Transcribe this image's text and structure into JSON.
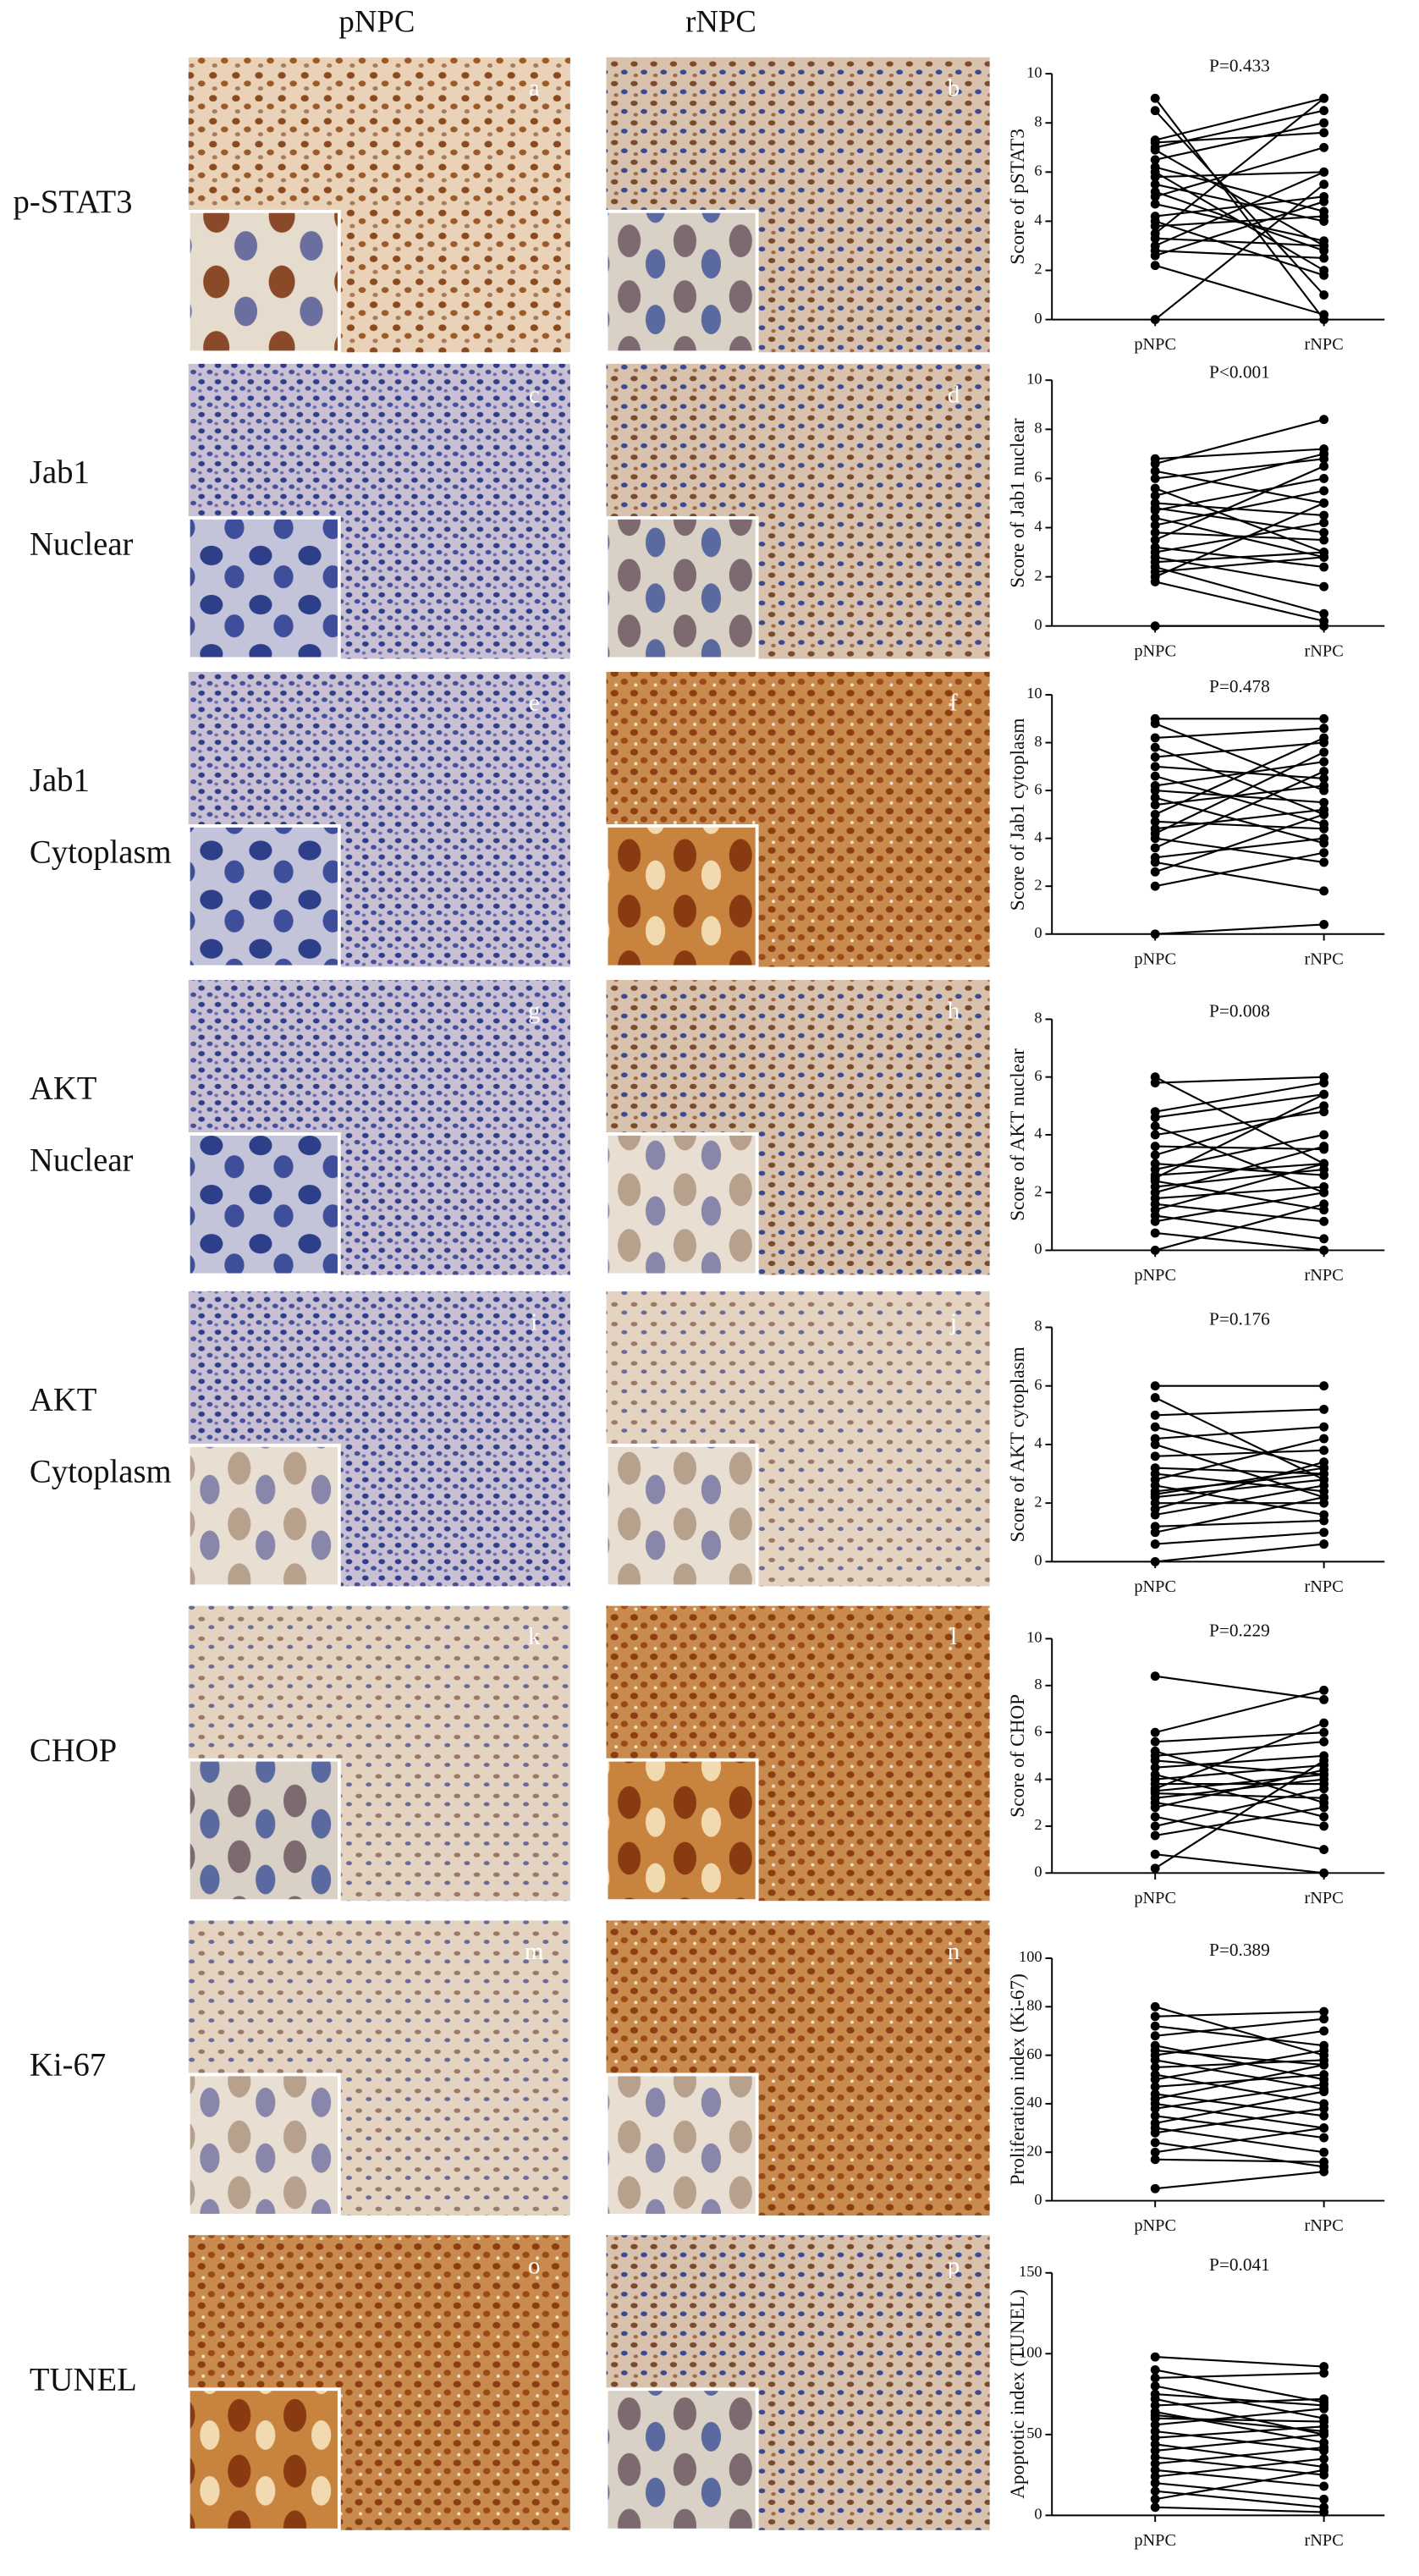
{
  "figure": {
    "column_headers": [
      "pNPC",
      "rNPC"
    ],
    "rows": [
      {
        "label_lines": [
          "p-STAT3"
        ],
        "panels": [
          "a",
          "b"
        ]
      },
      {
        "label_lines": [
          "Jab1",
          "Nuclear"
        ],
        "panels": [
          "c",
          "d"
        ]
      },
      {
        "label_lines": [
          "Jab1",
          "Cytoplasm"
        ],
        "panels": [
          "e",
          "f"
        ]
      },
      {
        "label_lines": [
          "AKT",
          "Nuclear"
        ],
        "panels": [
          "g",
          "h"
        ]
      },
      {
        "label_lines": [
          "AKT",
          "Cytoplasm"
        ],
        "panels": [
          "i",
          "j"
        ]
      },
      {
        "label_lines": [
          "CHOP"
        ],
        "panels": [
          "k",
          "l"
        ]
      },
      {
        "label_lines": [
          "Ki-67"
        ],
        "panels": [
          "m",
          "n"
        ]
      },
      {
        "label_lines": [
          "TUNEL"
        ],
        "panels": [
          "o",
          "p"
        ]
      }
    ]
  },
  "chart_data": [
    {
      "type": "paired",
      "annotation": "P=0.433",
      "y_label": "Score of pSTAT3",
      "categories": [
        "pNPC",
        "rNPC"
      ],
      "color": "#000000",
      "ylim": [
        0,
        10
      ],
      "yticks": [
        0,
        2,
        4,
        6,
        8,
        10
      ],
      "pairs": [
        [
          9,
          0
        ],
        [
          8.5,
          1
        ],
        [
          7.3,
          9
        ],
        [
          7,
          8.5
        ],
        [
          6.9,
          3
        ],
        [
          6.5,
          8
        ],
        [
          6.2,
          4.4
        ],
        [
          6,
          2
        ],
        [
          5.8,
          6
        ],
        [
          5.5,
          4
        ],
        [
          5,
          7
        ],
        [
          4.7,
          3.2
        ],
        [
          4.2,
          5
        ],
        [
          4,
          1.8
        ],
        [
          3.8,
          4.2
        ],
        [
          3.3,
          3
        ],
        [
          3,
          6
        ],
        [
          2.8,
          2.5
        ],
        [
          2.6,
          4.8
        ],
        [
          2.2,
          0.2
        ],
        [
          0,
          5.5
        ],
        [
          7.2,
          7.6
        ],
        [
          3.5,
          9
        ],
        [
          5.2,
          2.8
        ]
      ]
    },
    {
      "type": "paired",
      "annotation": "P<0.001",
      "y_label": "Score of Jab1 nuclear",
      "categories": [
        "pNPC",
        "rNPC"
      ],
      "color": "#000000",
      "ylim": [
        0,
        10
      ],
      "yticks": [
        0,
        2,
        4,
        6,
        8,
        10
      ],
      "pairs": [
        [
          6.8,
          7.2
        ],
        [
          6.6,
          8.4
        ],
        [
          6.3,
          5
        ],
        [
          6,
          6.8
        ],
        [
          5.6,
          3
        ],
        [
          5.3,
          7
        ],
        [
          5,
          4.5
        ],
        [
          4.7,
          6
        ],
        [
          4.4,
          2.8
        ],
        [
          4.1,
          5.5
        ],
        [
          3.8,
          3.5
        ],
        [
          3.5,
          6.5
        ],
        [
          3.2,
          2.4
        ],
        [
          3,
          4.2
        ],
        [
          2.8,
          1.6
        ],
        [
          2.6,
          3
        ],
        [
          2.4,
          0.5
        ],
        [
          2.2,
          2.8
        ],
        [
          2,
          5
        ],
        [
          0,
          0
        ],
        [
          1.8,
          0.2
        ],
        [
          4.8,
          3.8
        ]
      ]
    },
    {
      "type": "paired",
      "annotation": "P=0.478",
      "y_label": "Score of Jab1 cytoplasm",
      "categories": [
        "pNPC",
        "rNPC"
      ],
      "color": "#000000",
      "ylim": [
        0,
        10
      ],
      "yticks": [
        0,
        2,
        4,
        6,
        8,
        10
      ],
      "pairs": [
        [
          9,
          9
        ],
        [
          8.8,
          6
        ],
        [
          8.2,
          8.6
        ],
        [
          7.8,
          5
        ],
        [
          7.4,
          8
        ],
        [
          7,
          6.5
        ],
        [
          6.6,
          4.6
        ],
        [
          6.2,
          7.2
        ],
        [
          6,
          5.5
        ],
        [
          5.7,
          3.8
        ],
        [
          5.4,
          6.2
        ],
        [
          5,
          8.2
        ],
        [
          4.7,
          4.4
        ],
        [
          4.4,
          5.2
        ],
        [
          4,
          3
        ],
        [
          3.6,
          6.8
        ],
        [
          3.2,
          4
        ],
        [
          3,
          1.8
        ],
        [
          2.6,
          5
        ],
        [
          2,
          3.4
        ],
        [
          0,
          0.4
        ],
        [
          4.2,
          7.6
        ]
      ]
    },
    {
      "type": "paired",
      "annotation": "P=0.008",
      "y_label": "Score of AKT nuclear",
      "categories": [
        "pNPC",
        "rNPC"
      ],
      "color": "#000000",
      "ylim": [
        0,
        8
      ],
      "yticks": [
        0,
        2,
        4,
        6,
        8
      ],
      "pairs": [
        [
          6,
          3
        ],
        [
          5.8,
          6
        ],
        [
          4.8,
          5.8
        ],
        [
          4.6,
          5.4
        ],
        [
          4.3,
          2
        ],
        [
          4,
          4.8
        ],
        [
          3.6,
          3.5
        ],
        [
          3.3,
          5
        ],
        [
          3,
          2.6
        ],
        [
          2.8,
          4
        ],
        [
          2.6,
          3
        ],
        [
          2.4,
          1.4
        ],
        [
          2.2,
          2.8
        ],
        [
          2,
          3.6
        ],
        [
          1.8,
          2.2
        ],
        [
          1.6,
          1
        ],
        [
          1.4,
          3
        ],
        [
          1.2,
          0.4
        ],
        [
          1,
          2
        ],
        [
          0.6,
          0
        ],
        [
          0,
          1.6
        ],
        [
          2.5,
          5.4
        ]
      ]
    },
    {
      "type": "paired",
      "annotation": "P=0.176",
      "y_label": "Score of AKT cytoplasm",
      "categories": [
        "pNPC",
        "rNPC"
      ],
      "color": "#000000",
      "ylim": [
        0,
        8
      ],
      "yticks": [
        0,
        2,
        4,
        6,
        8
      ],
      "pairs": [
        [
          6,
          6
        ],
        [
          5.6,
          2.8
        ],
        [
          5,
          5.2
        ],
        [
          4.6,
          3.2
        ],
        [
          4.2,
          4.6
        ],
        [
          4,
          2.2
        ],
        [
          3.6,
          3.8
        ],
        [
          3.2,
          3
        ],
        [
          3,
          2.4
        ],
        [
          2.8,
          4.2
        ],
        [
          2.6,
          1.6
        ],
        [
          2.4,
          3
        ],
        [
          2.2,
          2.8
        ],
        [
          2,
          2
        ],
        [
          1.8,
          3.4
        ],
        [
          1.6,
          2.6
        ],
        [
          1.2,
          1.4
        ],
        [
          1,
          2.2
        ],
        [
          0.6,
          1
        ],
        [
          0,
          0.6
        ],
        [
          2.3,
          3.2
        ]
      ]
    },
    {
      "type": "paired",
      "annotation": "P=0.229",
      "y_label": "Score of CHOP",
      "categories": [
        "pNPC",
        "rNPC"
      ],
      "color": "#000000",
      "ylim": [
        0,
        10
      ],
      "yticks": [
        0,
        2,
        4,
        6,
        8,
        10
      ],
      "pairs": [
        [
          8.4,
          7.4
        ],
        [
          6,
          7.8
        ],
        [
          5.6,
          6
        ],
        [
          5.2,
          3
        ],
        [
          5,
          5.6
        ],
        [
          4.8,
          4.2
        ],
        [
          4.5,
          5
        ],
        [
          4.2,
          2.4
        ],
        [
          4,
          4.6
        ],
        [
          3.8,
          3.8
        ],
        [
          3.6,
          6.4
        ],
        [
          3.4,
          3.2
        ],
        [
          3.2,
          4
        ],
        [
          3,
          2
        ],
        [
          2.8,
          4.4
        ],
        [
          2.4,
          1
        ],
        [
          2,
          3.6
        ],
        [
          1.6,
          2.8
        ],
        [
          0.8,
          0
        ],
        [
          0.2,
          4.8
        ],
        [
          3.5,
          4.2
        ]
      ]
    },
    {
      "type": "paired",
      "annotation": "P=0.389",
      "y_label": "Proliferation index (Ki-67)",
      "categories": [
        "pNPC",
        "rNPC"
      ],
      "color": "#000000",
      "ylim": [
        0,
        100
      ],
      "yticks": [
        0,
        20,
        40,
        60,
        80,
        100
      ],
      "pairs": [
        [
          80,
          60
        ],
        [
          76,
          78
        ],
        [
          72,
          64
        ],
        [
          68,
          75
        ],
        [
          64,
          50
        ],
        [
          60,
          70
        ],
        [
          58,
          46
        ],
        [
          55,
          58
        ],
        [
          52,
          40
        ],
        [
          50,
          62
        ],
        [
          47,
          52
        ],
        [
          44,
          35
        ],
        [
          42,
          56
        ],
        [
          40,
          30
        ],
        [
          38,
          48
        ],
        [
          35,
          26
        ],
        [
          32,
          45
        ],
        [
          30,
          20
        ],
        [
          28,
          38
        ],
        [
          24,
          14
        ],
        [
          20,
          30
        ],
        [
          17,
          16
        ],
        [
          5,
          12
        ],
        [
          62,
          56
        ]
      ]
    },
    {
      "type": "paired",
      "annotation": "P=0.041",
      "y_label": "Apoptotic index (TUNEL)",
      "categories": [
        "pNPC",
        "rNPC"
      ],
      "color": "#000000",
      "ylim": [
        0,
        150
      ],
      "yticks": [
        0,
        50,
        100,
        150
      ],
      "pairs": [
        [
          98,
          92
        ],
        [
          90,
          70
        ],
        [
          85,
          88
        ],
        [
          80,
          60
        ],
        [
          75,
          68
        ],
        [
          72,
          50
        ],
        [
          68,
          72
        ],
        [
          64,
          45
        ],
        [
          60,
          58
        ],
        [
          56,
          66
        ],
        [
          52,
          40
        ],
        [
          48,
          55
        ],
        [
          44,
          30
        ],
        [
          40,
          50
        ],
        [
          36,
          25
        ],
        [
          32,
          42
        ],
        [
          28,
          18
        ],
        [
          24,
          35
        ],
        [
          20,
          10
        ],
        [
          15,
          5
        ],
        [
          10,
          28
        ],
        [
          5,
          2
        ],
        [
          62,
          52
        ]
      ]
    }
  ]
}
